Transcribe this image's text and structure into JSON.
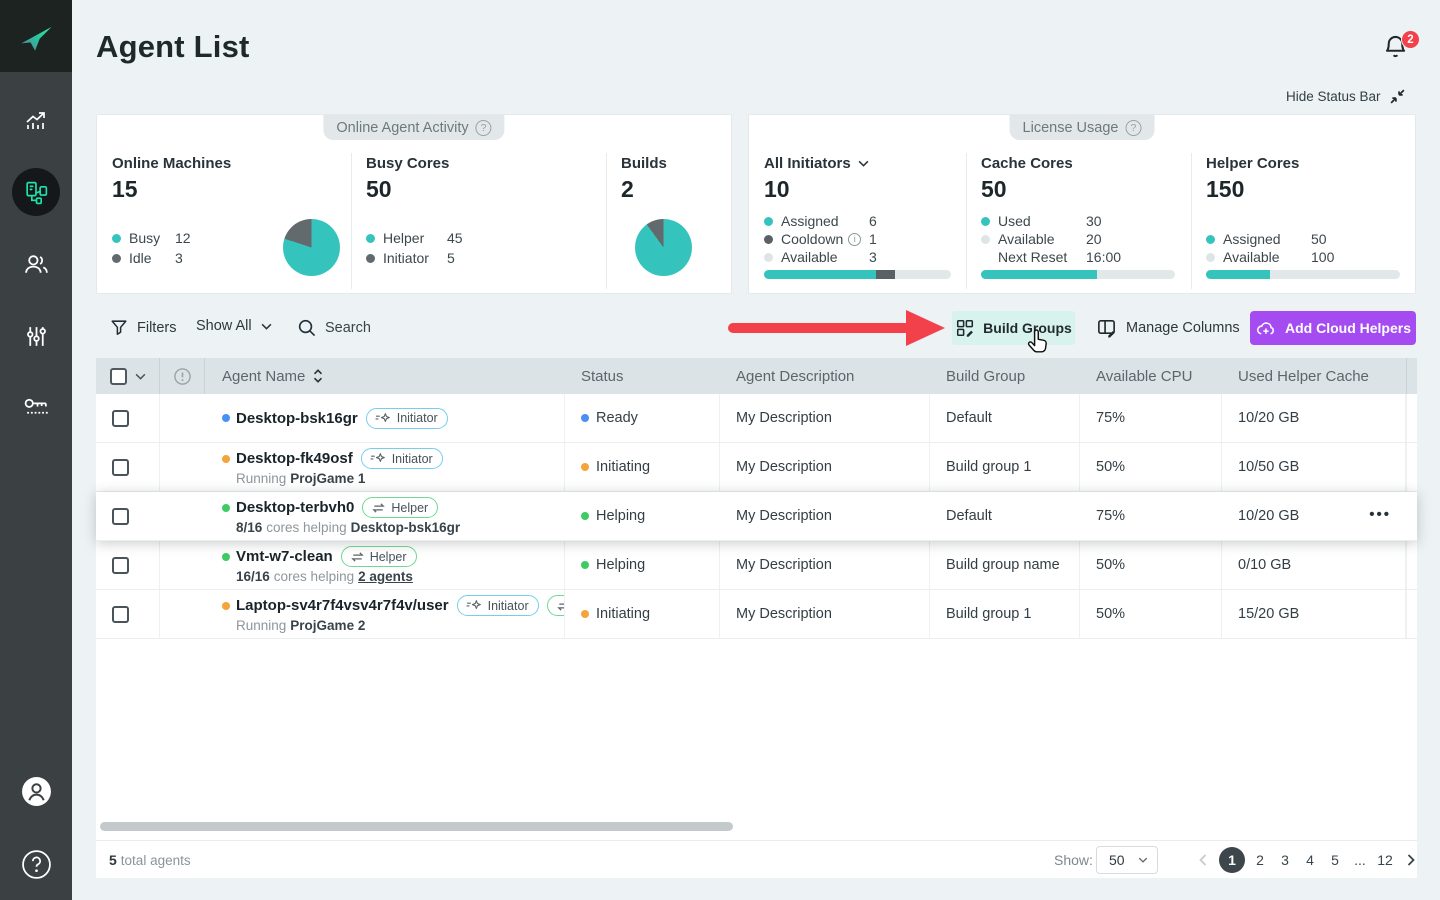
{
  "theme": {
    "teal": "#35c4bd",
    "dark": "#5d6568",
    "red": "#f2414b",
    "purple": "#a44cf2",
    "mint": "#d8f2ee",
    "tag_initiator": "#76cdee",
    "tag_helper": "#72d694",
    "track": "#e2e7e9"
  },
  "app": {
    "title": "Agent List",
    "notification_count": "2",
    "hide_status_bar_label": "Hide Status Bar"
  },
  "activity_card": {
    "title": "Online Agent Activity",
    "stats": [
      {
        "label": "Online Machines",
        "value": "15",
        "pie": {
          "values": [
            12,
            3
          ],
          "colors": [
            "#35c4bd",
            "#626a6d"
          ]
        },
        "legend": [
          {
            "name": "Busy",
            "value": "12",
            "color": "#35c4bd"
          },
          {
            "name": "Idle",
            "value": "3",
            "color": "#626a6d"
          }
        ]
      },
      {
        "label": "Busy Cores",
        "value": "50",
        "pie": {
          "values": [
            45,
            5
          ],
          "colors": [
            "#35c4bd",
            "#626a6d"
          ]
        },
        "legend": [
          {
            "name": "Helper",
            "value": "45",
            "color": "#35c4bd"
          },
          {
            "name": "Initiator",
            "value": "5",
            "color": "#626a6d"
          }
        ]
      },
      {
        "label": "Builds",
        "value": "2"
      }
    ]
  },
  "license_card": {
    "title": "License Usage",
    "sections": [
      {
        "label": "All Initiators",
        "value": "10",
        "legend": [
          {
            "name": "Assigned",
            "value": "6",
            "color": "#35c4bd"
          },
          {
            "name": "Cooldown",
            "value": "1",
            "color": "#596165"
          },
          {
            "name": "Available",
            "value": "3",
            "color": "#dfe4e6"
          }
        ],
        "bar": {
          "segments": [
            {
              "color": "#35c4bd",
              "pct": 60
            },
            {
              "color": "#596165",
              "pct": 10
            }
          ]
        }
      },
      {
        "label": "Cache Cores",
        "value": "50",
        "legend": [
          {
            "name": "Used",
            "value": "30",
            "color": "#35c4bd"
          },
          {
            "name": "Available",
            "value": "20",
            "color": "#dfe4e6"
          },
          {
            "name": "Next Reset",
            "value": "16:00"
          }
        ],
        "bar": {
          "segments": [
            {
              "color": "#35c4bd",
              "pct": 60
            }
          ]
        }
      },
      {
        "label": "Helper Cores",
        "value": "150",
        "legend": [
          {
            "name": "Assigned",
            "value": "50",
            "color": "#35c4bd"
          },
          {
            "name": "Available",
            "value": "100",
            "color": "#dfe4e6"
          }
        ],
        "bar": {
          "segments": [
            {
              "color": "#35c4bd",
              "pct": 33
            }
          ]
        }
      }
    ]
  },
  "toolbar": {
    "filters_label": "Filters",
    "show_filter_value": "Show All",
    "search_placeholder": "Search",
    "build_groups_label": "Build Groups",
    "manage_columns_label": "Manage Columns",
    "add_cloud_helpers_label": "Add Cloud Helpers"
  },
  "table": {
    "header": {
      "agent_name": "Agent Name",
      "status": "Status",
      "description": "Agent Description",
      "build_group": "Build Group",
      "available_cpu": "Available CPU",
      "used_helper_cache": "Used Helper Cache"
    },
    "rows": [
      {
        "dot_color": "#4a90f4",
        "name": "Desktop-bsk16gr",
        "tags": [
          {
            "label": "Initiator",
            "type": "initiator"
          }
        ],
        "status": {
          "color": "#4a90f4",
          "label": "Ready"
        },
        "description": "My Description",
        "build_group": "Default",
        "available_cpu": "75%",
        "used_helper_cache": "10/20 GB"
      },
      {
        "dot_color": "#f5a43a",
        "name": "Desktop-fk49osf",
        "tags": [
          {
            "label": "Initiator",
            "type": "initiator"
          }
        ],
        "subtitle": {
          "lead": "",
          "mid": "Running",
          "tail": "ProjGame 1"
        },
        "status": {
          "color": "#f5a43a",
          "label": "Initiating"
        },
        "description": "My Description",
        "build_group": "Build group 1",
        "available_cpu": "50%",
        "used_helper_cache": "10/50 GB"
      },
      {
        "dot_color": "#3ecb63",
        "name": "Desktop-terbvh0",
        "tags": [
          {
            "label": "Helper",
            "type": "helper"
          }
        ],
        "subtitle": {
          "lead": "8/16",
          "mid": "cores helping",
          "tail": "Desktop-bsk16gr"
        },
        "status": {
          "color": "#3ecb63",
          "label": "Helping"
        },
        "description": "My Description",
        "build_group": "Default",
        "available_cpu": "75%",
        "used_helper_cache": "10/20 GB",
        "actions": "•••"
      },
      {
        "dot_color": "#3ecb63",
        "name": "Vmt-w7-clean",
        "tags": [
          {
            "label": "Helper",
            "type": "helper"
          }
        ],
        "subtitle": {
          "lead": "16/16",
          "mid": "cores helping",
          "tail": "2 agents"
        },
        "status": {
          "color": "#3ecb63",
          "label": "Helping"
        },
        "description": "My Description",
        "build_group": "Build group name",
        "available_cpu": "50%",
        "used_helper_cache": "0/10 GB"
      },
      {
        "dot_color": "#f5a43a",
        "name": "Laptop-sv4r7f4vsv4r7f4v/user",
        "tags": [
          {
            "label": "Initiator",
            "type": "initiator"
          },
          {
            "label": "Helper",
            "type": "helper"
          }
        ],
        "subtitle": {
          "lead": "",
          "mid": "Running",
          "tail": "ProjGame 2"
        },
        "status": {
          "color": "#f5a43a",
          "label": "Initiating"
        },
        "description": "My Description",
        "build_group": "Build group 1",
        "available_cpu": "50%",
        "used_helper_cache": "15/20 GB"
      }
    ]
  },
  "footer": {
    "total_value": "5",
    "total_label": "total agents",
    "show_label": "Show:",
    "page_size": "50",
    "pages": [
      "1",
      "2",
      "3",
      "4",
      "5",
      "...",
      "12"
    ],
    "active_page": "1"
  }
}
